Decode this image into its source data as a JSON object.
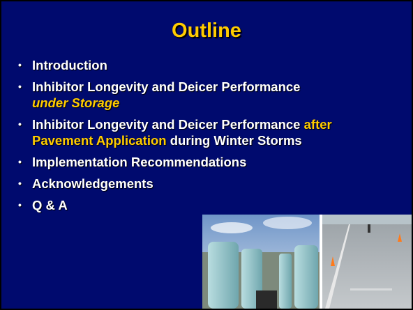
{
  "title": "Outline",
  "bullets": [
    {
      "lines": [
        [
          {
            "text": "Introduction",
            "color": "#ffffff",
            "italic": false
          }
        ]
      ]
    },
    {
      "lines": [
        [
          {
            "text": "Inhibitor Longevity and Deicer Performance",
            "color": "#ffffff",
            "italic": false
          }
        ],
        [
          {
            "text": "under Storage",
            "color": "#ffcc00",
            "italic": true
          }
        ]
      ]
    },
    {
      "lines": [
        [
          {
            "text": "Inhibitor Longevity and Deicer Performance ",
            "color": "#ffffff",
            "italic": false
          },
          {
            "text": "after",
            "color": "#ffcc00",
            "italic": false
          }
        ],
        [
          {
            "text": "Pavement Application",
            "color": "#ffcc00",
            "italic": false
          },
          {
            "text": " during Winter Storms",
            "color": "#ffffff",
            "italic": false
          }
        ]
      ]
    },
    {
      "lines": [
        [
          {
            "text": "Implementation Recommendations",
            "color": "#ffffff",
            "italic": false
          }
        ]
      ]
    },
    {
      "lines": [
        [
          {
            "text": "Acknowledgements",
            "color": "#ffffff",
            "italic": false
          }
        ]
      ]
    },
    {
      "lines": [
        [
          {
            "text": "Q & A",
            "color": "#ffffff",
            "italic": false
          }
        ]
      ]
    }
  ]
}
